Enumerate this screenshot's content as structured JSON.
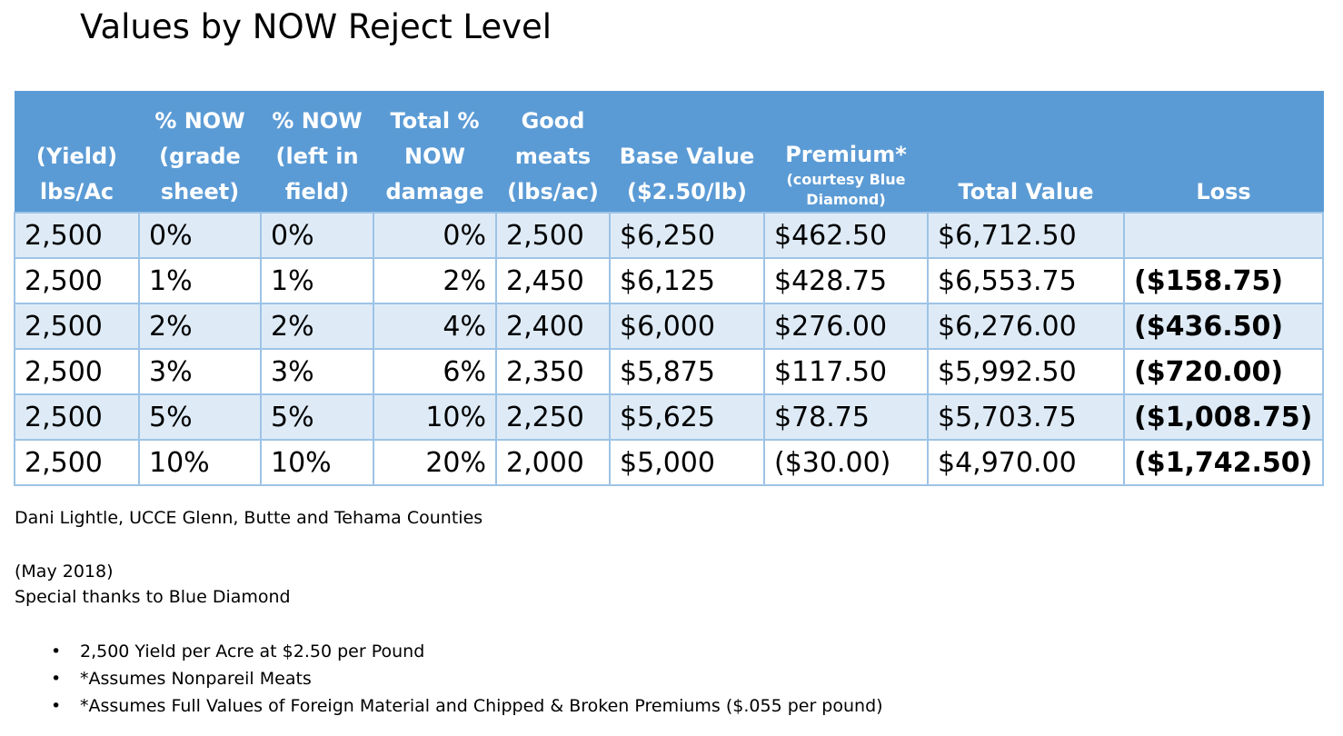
{
  "title": "Values by NOW Reject Level",
  "table": {
    "headers": [
      {
        "lines": [
          "(Yield)",
          "lbs/Ac"
        ]
      },
      {
        "lines": [
          "% NOW",
          "(grade",
          "sheet)"
        ]
      },
      {
        "lines": [
          "% NOW",
          "(left in",
          "field)"
        ]
      },
      {
        "lines": [
          "Total %",
          "NOW",
          "damage"
        ]
      },
      {
        "lines": [
          "Good",
          "meats",
          "(lbs/ac)"
        ]
      },
      {
        "lines": [
          "Base Value",
          "($2.50/lb)"
        ]
      },
      {
        "main": "Premium*",
        "sub": [
          "(courtesy Blue",
          "Diamond)"
        ]
      },
      {
        "lines": [
          "Total Value"
        ]
      },
      {
        "lines": [
          "Loss"
        ]
      }
    ],
    "rows": [
      [
        "2,500",
        "0%",
        "0%",
        "0%",
        "2,500",
        "$6,250",
        "$462.50",
        "$6,712.50",
        ""
      ],
      [
        "2,500",
        "1%",
        "1%",
        "2%",
        "2,450",
        "$6,125",
        "$428.75",
        "$6,553.75",
        "($158.75)"
      ],
      [
        "2,500",
        "2%",
        "2%",
        "4%",
        "2,400",
        "$6,000",
        "$276.00",
        "$6,276.00",
        "($436.50)"
      ],
      [
        "2,500",
        "3%",
        "3%",
        "6%",
        "2,350",
        "$5,875",
        "$117.50",
        "$5,992.50",
        "($720.00)"
      ],
      [
        "2,500",
        "5%",
        "5%",
        "10%",
        "2,250",
        "$5,625",
        "$78.75",
        "$5,703.75",
        "($1,008.75)"
      ],
      [
        "2,500",
        "10%",
        "10%",
        "20%",
        "2,000",
        "$5,000",
        "($30.00)",
        "$4,970.00",
        "($1,742.50)"
      ]
    ]
  },
  "notes": {
    "author": "Dani Lightle, UCCE Glenn, Butte and Tehama Counties",
    "date": "(May 2018)",
    "thanks": "Special thanks to Blue Diamond"
  },
  "bullets": [
    "2,500 Yield per Acre at $2.50 per Pound",
    "*Assumes Nonpareil Meats",
    "*Assumes Full Values of Foreign Material and Chipped & Broken Premiums ($.055 per pound)"
  ],
  "bullet_glyph": "•",
  "colors": {
    "header_bg": "#5b9bd5",
    "row_alt_bg": "#deebf7",
    "border": "#9dc3e6"
  }
}
